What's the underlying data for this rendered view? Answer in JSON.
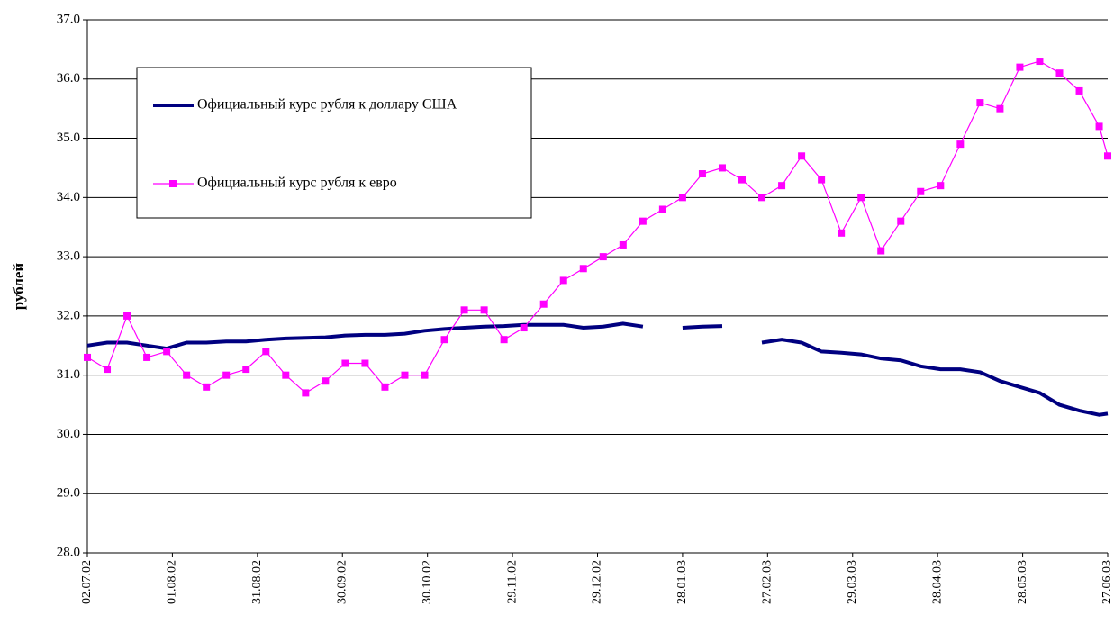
{
  "chart_data": {
    "type": "line",
    "y_label": "рублей",
    "x": [
      "02.07.02",
      "09.07.02",
      "16.07.02",
      "23.07.02",
      "30.07.02",
      "06.08.02",
      "13.08.02",
      "20.08.02",
      "27.08.02",
      "03.09.02",
      "10.09.02",
      "17.09.02",
      "24.09.02",
      "01.10.02",
      "08.10.02",
      "15.10.02",
      "22.10.02",
      "29.10.02",
      "05.11.02",
      "12.11.02",
      "19.11.02",
      "26.11.02",
      "03.12.02",
      "10.12.02",
      "17.12.02",
      "24.12.02",
      "31.12.02",
      "07.01.03",
      "14.01.03",
      "21.01.03",
      "28.01.03",
      "04.02.03",
      "11.02.03",
      "18.02.03",
      "25.02.03",
      "04.03.03",
      "11.03.03",
      "18.03.03",
      "25.03.03",
      "01.04.03",
      "08.04.03",
      "15.04.03",
      "22.04.03",
      "29.04.03",
      "06.05.03",
      "13.05.03",
      "20.05.03",
      "27.05.03",
      "03.06.03",
      "10.06.03",
      "17.06.03",
      "24.06.03",
      "27.06.03"
    ],
    "series": [
      {
        "name": "Официальный курс рубля к доллару США",
        "color": "#000080",
        "values": [
          31.5,
          31.55,
          31.55,
          31.5,
          31.45,
          31.55,
          31.55,
          31.57,
          31.57,
          31.6,
          31.62,
          31.63,
          31.64,
          31.67,
          31.68,
          31.68,
          31.7,
          31.75,
          31.78,
          31.8,
          31.82,
          31.83,
          31.85,
          31.85,
          31.85,
          31.8,
          31.82,
          31.87,
          31.82,
          null,
          31.8,
          31.82,
          31.83,
          null,
          31.55,
          31.6,
          31.55,
          31.4,
          31.38,
          31.35,
          31.28,
          31.25,
          31.15,
          31.1,
          31.1,
          31.05,
          30.9,
          30.8,
          30.7,
          30.5,
          30.4,
          30.33,
          30.35
        ]
      },
      {
        "name": "Официальный курс рубля к евро",
        "color": "#ff00ff",
        "values": [
          31.3,
          31.1,
          32.0,
          31.3,
          31.4,
          31.0,
          30.8,
          31.0,
          31.1,
          31.4,
          31.0,
          30.7,
          30.9,
          31.2,
          31.2,
          30.8,
          31.0,
          31.0,
          31.6,
          32.1,
          32.1,
          31.6,
          31.8,
          32.2,
          32.6,
          32.8,
          33.0,
          33.2,
          33.6,
          33.8,
          34.0,
          34.4,
          34.5,
          34.3,
          34.0,
          34.2,
          34.7,
          34.3,
          33.4,
          34.0,
          33.1,
          33.6,
          34.1,
          34.2,
          34.9,
          35.6,
          35.5,
          36.2,
          36.3,
          36.1,
          35.8,
          35.2,
          34.7
        ]
      }
    ],
    "xlim": [
      "02.07.02",
      "27.06.03"
    ],
    "xticks": [
      "02.07.02",
      "01.08.02",
      "31.08.02",
      "30.09.02",
      "30.10.02",
      "29.11.02",
      "29.12.02",
      "28.01.03",
      "27.02.03",
      "29.03.03",
      "28.04.03",
      "28.05.03",
      "27.06.03"
    ],
    "ylim": [
      28,
      37
    ],
    "yticks": [
      {
        "value": 28,
        "label": "28.0"
      },
      {
        "value": 29,
        "label": "29.0"
      },
      {
        "value": 30,
        "label": "30.0"
      },
      {
        "value": 31,
        "label": "31.0"
      },
      {
        "value": 32,
        "label": "32.0"
      },
      {
        "value": 33,
        "label": "33.0"
      },
      {
        "value": 34,
        "label": "34.0"
      },
      {
        "value": 35,
        "label": "35.0"
      },
      {
        "value": 36,
        "label": "36.0"
      },
      {
        "value": 37,
        "label": "37.0"
      }
    ],
    "grid": true
  }
}
